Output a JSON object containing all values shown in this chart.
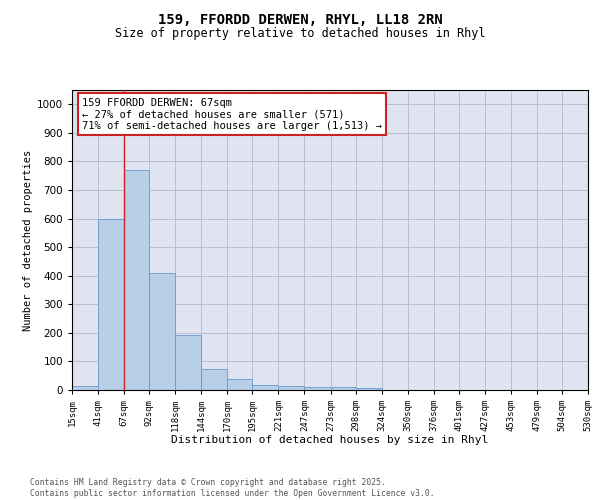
{
  "title_line1": "159, FFORDD DERWEN, RHYL, LL18 2RN",
  "title_line2": "Size of property relative to detached houses in Rhyl",
  "xlabel": "Distribution of detached houses by size in Rhyl",
  "ylabel": "Number of detached properties",
  "bin_labels": [
    "15sqm",
    "41sqm",
    "67sqm",
    "92sqm",
    "118sqm",
    "144sqm",
    "170sqm",
    "195sqm",
    "221sqm",
    "247sqm",
    "273sqm",
    "298sqm",
    "324sqm",
    "350sqm",
    "376sqm",
    "401sqm",
    "427sqm",
    "453sqm",
    "479sqm",
    "504sqm",
    "530sqm"
  ],
  "bin_edges": [
    15,
    41,
    67,
    92,
    118,
    144,
    170,
    195,
    221,
    247,
    273,
    298,
    324,
    350,
    376,
    401,
    427,
    453,
    479,
    504,
    530
  ],
  "bar_heights": [
    15,
    600,
    770,
    410,
    192,
    75,
    37,
    18,
    15,
    12,
    12,
    7,
    0,
    0,
    0,
    0,
    0,
    0,
    0,
    0
  ],
  "bar_color": "#b8cfe8",
  "bar_edgecolor": "#6699cc",
  "grid_color": "#b0b8cc",
  "bg_color": "#e0e4f0",
  "vline_x": 67,
  "vline_color": "#cc2222",
  "ylim": [
    0,
    1050
  ],
  "yticks": [
    0,
    100,
    200,
    300,
    400,
    500,
    600,
    700,
    800,
    900,
    1000
  ],
  "annotation_text": "159 FFORDD DERWEN: 67sqm\n← 27% of detached houses are smaller (571)\n71% of semi-detached houses are larger (1,513) →",
  "annotation_box_color": "#cc2222",
  "footnote": "Contains HM Land Registry data © Crown copyright and database right 2025.\nContains public sector information licensed under the Open Government Licence v3.0."
}
